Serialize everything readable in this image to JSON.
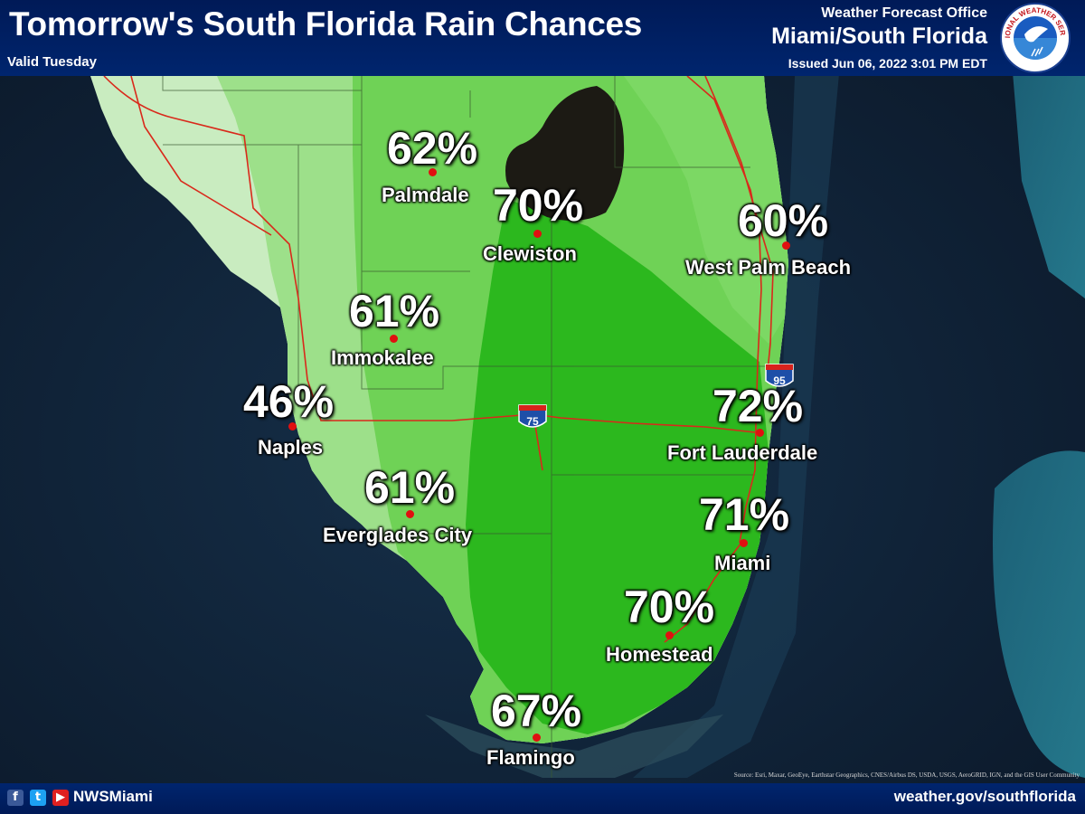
{
  "header": {
    "title": "Tomorrow's South Florida Rain Chances",
    "valid": "Valid Tuesday",
    "office_line1": "Weather Forecast Office",
    "office_line2": "Miami/South Florida",
    "issued": "Issued Jun 06, 2022 3:01 PM EDT",
    "logo_text": "NATIONAL WEATHER SERVICE"
  },
  "footer": {
    "social_icons": [
      "facebook-icon",
      "twitter-icon",
      "youtube-icon"
    ],
    "handle": "NWSMiami",
    "website": "weather.gov/southflorida",
    "source": "Source: Esri, Maxar, GeoEye, Earthstar Geographics, CNES/Airbus DS, USDA, USGS, AeroGRID, IGN, and the GIS User Community"
  },
  "highways": {
    "i75": "75",
    "i95": "95"
  },
  "locations": [
    {
      "id": "palmdale",
      "name": "Palmdale",
      "chance": "62%"
    },
    {
      "id": "clewiston",
      "name": "Clewiston",
      "chance": "70%"
    },
    {
      "id": "west-palm-beach",
      "name": "West Palm Beach",
      "chance": "60%"
    },
    {
      "id": "immokalee",
      "name": "Immokalee",
      "chance": "61%"
    },
    {
      "id": "naples",
      "name": "Naples",
      "chance": "46%"
    },
    {
      "id": "fort-lauderdale",
      "name": "Fort Lauderdale",
      "chance": "72%"
    },
    {
      "id": "everglades-city",
      "name": "Everglades City",
      "chance": "61%"
    },
    {
      "id": "miami",
      "name": "Miami",
      "chance": "71%"
    },
    {
      "id": "homestead",
      "name": "Homestead",
      "chance": "70%"
    },
    {
      "id": "flamingo",
      "name": "Flamingo",
      "chance": "67%"
    }
  ],
  "colors": {
    "ocean": "#0d1e33",
    "land_low": "#c9ecc0",
    "land_mid": "#86d56f",
    "land_high": "#52c23a",
    "land_max": "#2cb81e",
    "lake": "#1c1a14",
    "road": "#d9291b",
    "header_bg": "#00256e"
  }
}
